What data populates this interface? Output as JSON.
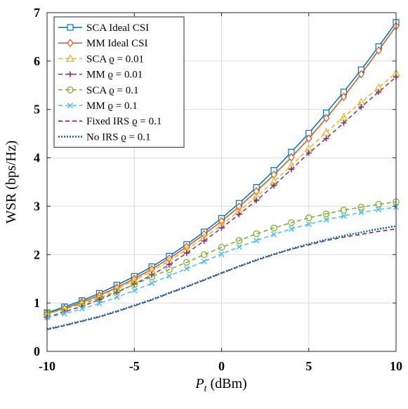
{
  "chart_data": {
    "type": "line",
    "xlabel": {
      "main": "P",
      "sub": "t",
      "unit": " (dBm)"
    },
    "ylabel": "WSR (bps/Hz)",
    "xlim": [
      -10,
      10
    ],
    "ylim": [
      0,
      7
    ],
    "xticks": [
      -10,
      -5,
      0,
      5,
      10
    ],
    "yticks": [
      0,
      1,
      2,
      3,
      4,
      5,
      6,
      7
    ],
    "grid": true,
    "legend_position": "top-left",
    "x": [
      -10,
      -9,
      -8,
      -7,
      -6,
      -5,
      -4,
      -3,
      -2,
      -1,
      0,
      1,
      2,
      3,
      4,
      5,
      6,
      7,
      8,
      9,
      10
    ],
    "series": [
      {
        "name": "SCA Ideal CSI",
        "color": "#0072BD",
        "dash": "solid",
        "marker": "square",
        "values": [
          0.8,
          0.92,
          1.05,
          1.2,
          1.37,
          1.55,
          1.75,
          1.97,
          2.21,
          2.47,
          2.75,
          3.06,
          3.39,
          3.74,
          4.12,
          4.51,
          4.93,
          5.36,
          5.82,
          6.3,
          6.8
        ]
      },
      {
        "name": "MM Ideal CSI",
        "color": "#D95319",
        "dash": "solid",
        "marker": "diamond",
        "values": [
          0.78,
          0.89,
          1.02,
          1.16,
          1.32,
          1.5,
          1.7,
          1.92,
          2.16,
          2.42,
          2.69,
          2.99,
          3.31,
          3.65,
          4.01,
          4.4,
          4.82,
          5.26,
          5.73,
          6.22,
          6.72
        ]
      },
      {
        "name": "SCA ϱ = 0.01",
        "color": "#EDB120",
        "dash": "6,4",
        "marker": "triangle",
        "values": [
          0.77,
          0.87,
          1.0,
          1.14,
          1.29,
          1.47,
          1.66,
          1.87,
          2.1,
          2.35,
          2.61,
          2.9,
          3.2,
          3.51,
          3.84,
          4.19,
          4.53,
          4.84,
          5.15,
          5.45,
          5.75
        ]
      },
      {
        "name": "MM ϱ = 0.01",
        "color": "#7E2F8E",
        "dash": "6,4",
        "marker": "plus",
        "values": [
          0.7,
          0.82,
          0.93,
          1.07,
          1.22,
          1.39,
          1.58,
          1.79,
          2.03,
          2.28,
          2.55,
          2.83,
          3.12,
          3.43,
          3.76,
          4.1,
          4.4,
          4.72,
          5.05,
          5.36,
          5.67
        ]
      },
      {
        "name": "SCA ϱ = 0.1",
        "color": "#77AC30",
        "dash": "6,4",
        "marker": "circle",
        "values": [
          0.8,
          0.88,
          0.98,
          1.1,
          1.24,
          1.38,
          1.54,
          1.69,
          1.84,
          2.0,
          2.15,
          2.29,
          2.43,
          2.55,
          2.66,
          2.76,
          2.84,
          2.92,
          2.98,
          3.04,
          3.09
        ]
      },
      {
        "name": "MM ϱ = 0.1",
        "color": "#4DBEEE",
        "dash": "6,4",
        "marker": "x",
        "values": [
          0.7,
          0.78,
          0.88,
          0.99,
          1.12,
          1.26,
          1.41,
          1.56,
          1.71,
          1.86,
          2.01,
          2.16,
          2.29,
          2.42,
          2.53,
          2.63,
          2.72,
          2.8,
          2.87,
          2.93,
          2.98
        ]
      },
      {
        "name": "Fixed IRS ϱ = 0.1",
        "color": "#A2142F",
        "dash": "6,4",
        "marker": "none",
        "values": [
          0.45,
          0.53,
          0.62,
          0.71,
          0.82,
          0.94,
          1.06,
          1.2,
          1.33,
          1.47,
          1.62,
          1.75,
          1.88,
          2.0,
          2.11,
          2.2,
          2.29,
          2.36,
          2.42,
          2.48,
          2.53
        ]
      },
      {
        "name": "No IRS ϱ = 0.1",
        "color": "#0072BD",
        "dash": "2,2",
        "marker": "none",
        "values": [
          0.46,
          0.54,
          0.63,
          0.72,
          0.83,
          0.95,
          1.07,
          1.21,
          1.34,
          1.48,
          1.62,
          1.76,
          1.89,
          2.01,
          2.12,
          2.22,
          2.31,
          2.39,
          2.46,
          2.53,
          2.59
        ]
      }
    ]
  }
}
